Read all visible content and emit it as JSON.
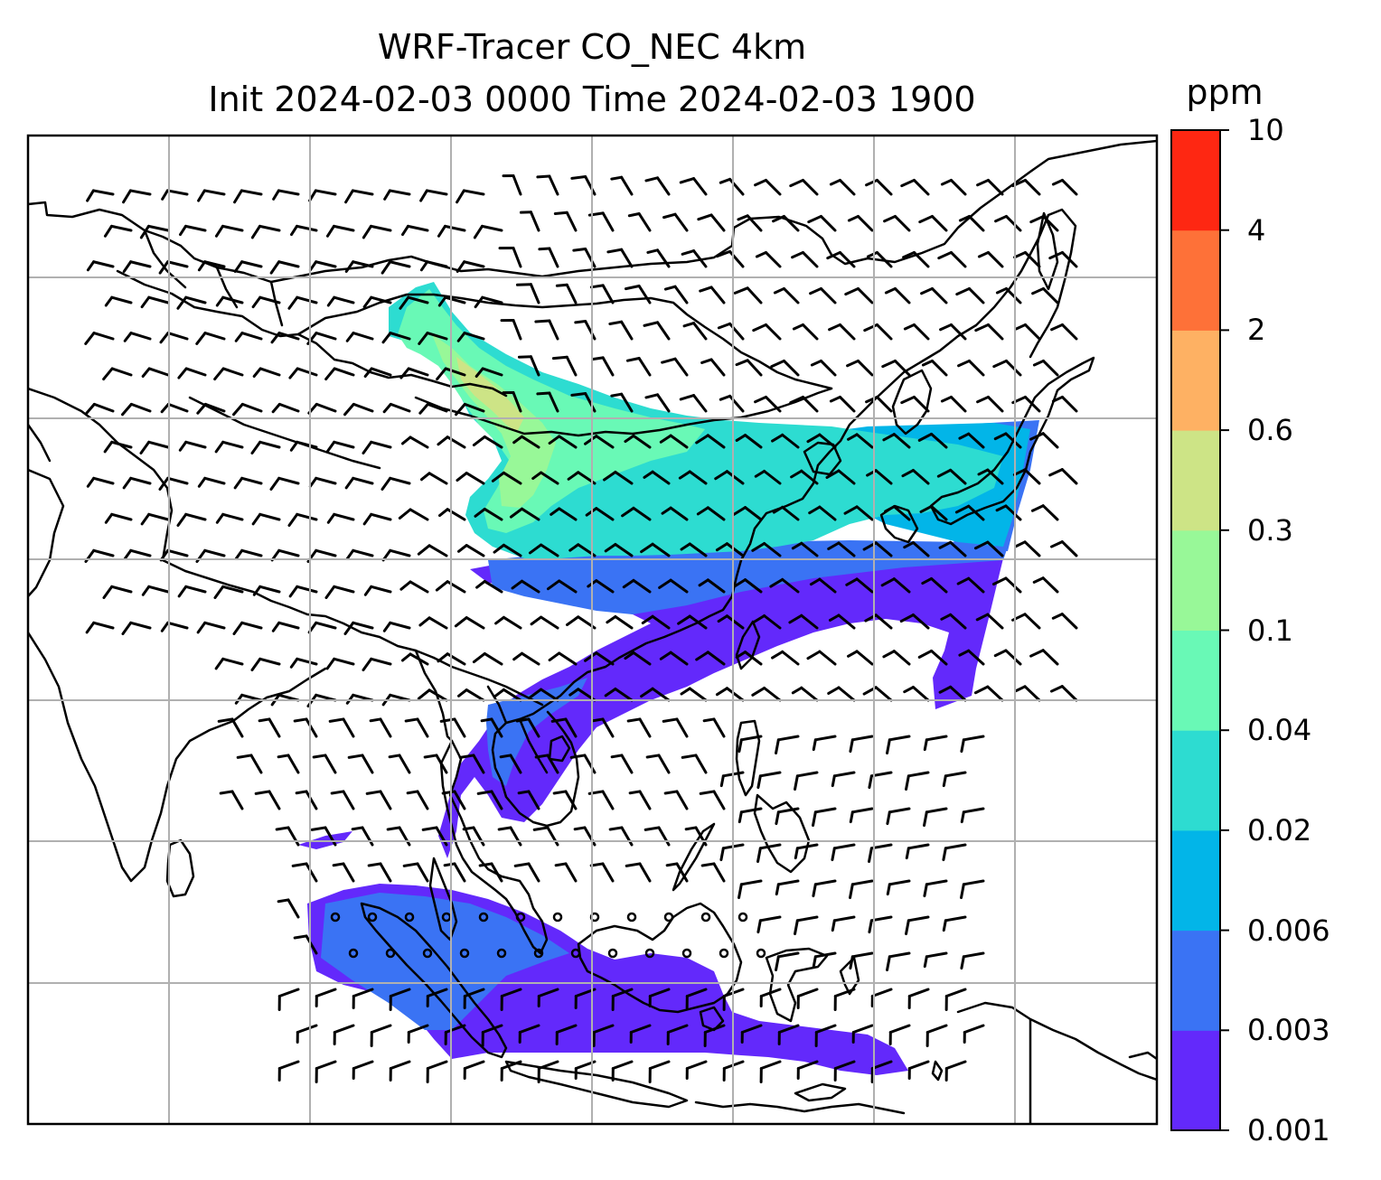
{
  "title": {
    "line1": "WRF-Tracer CO_NEC 4km",
    "line2": "Init 2024-02-03 0000 Time 2024-02-03 1900"
  },
  "colorbar": {
    "unit": "ppm",
    "levels": [
      "0.001",
      "0.003",
      "0.006",
      "0.02",
      "0.04",
      "0.1",
      "0.3",
      "0.6",
      "2",
      "4",
      "10"
    ],
    "colors": [
      "#6329fb",
      "#3a73f4",
      "#02b5e8",
      "#2ddcd1",
      "#69f9b6",
      "#98f898",
      "#cde486",
      "#feb163",
      "#fe7138",
      "#fe2712"
    ]
  },
  "map": {
    "gridlines": true,
    "gridline_color": "#b0b0b0",
    "coastline_color": "#000000",
    "barb_color": "#000000",
    "wind_field": "wind barbs",
    "tracer_field": "CO_NEC tracer concentration"
  }
}
